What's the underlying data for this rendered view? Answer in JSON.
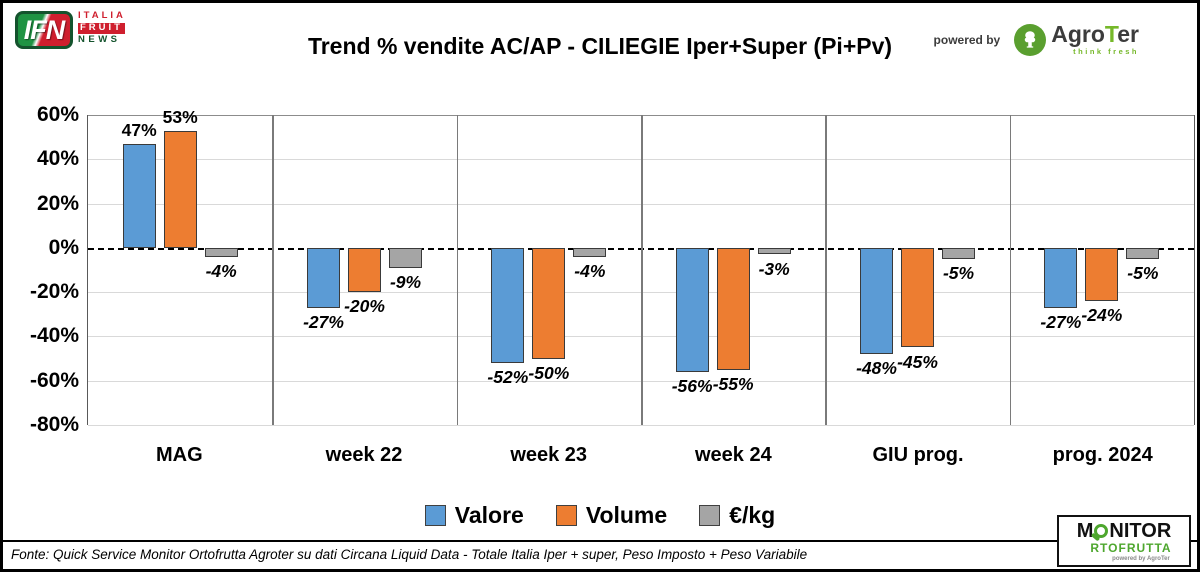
{
  "header": {
    "title": "Trend % vendite AC/AP - CILIEGIE Iper+Super (Pi+Pv)",
    "powered_by": "powered by",
    "ifn": {
      "abbr": "IFN",
      "line1": "ITALIA",
      "line2": "FRUIT",
      "line3": "NEWS"
    },
    "agroter": {
      "prefix": "Agro",
      "accent": "T",
      "suffix": "er",
      "tagline": "think fresh"
    }
  },
  "chart_data": {
    "type": "bar",
    "title": "Trend % vendite AC/AP - CILIEGIE Iper+Super (Pi+Pv)",
    "categories": [
      "MAG",
      "week 22",
      "week 23",
      "week 24",
      "GIU prog.",
      "prog. 2024"
    ],
    "series": [
      {
        "name": "Valore",
        "color": "#5B9BD5",
        "values": [
          47,
          -27,
          -52,
          -56,
          -48,
          -27
        ]
      },
      {
        "name": "Volume",
        "color": "#ED7D31",
        "values": [
          53,
          -20,
          -50,
          -55,
          -45,
          -24
        ]
      },
      {
        "name": "€/kg",
        "color": "#A5A5A5",
        "values": [
          -4,
          -9,
          -4,
          -3,
          -5,
          -5
        ]
      }
    ],
    "ylim": [
      -80,
      60
    ],
    "yticks": [
      60,
      40,
      20,
      0,
      -20,
      -40,
      -60,
      -80
    ],
    "ytick_format": "percent",
    "grid": true,
    "zero_line": "dashed",
    "legend_position": "bottom"
  },
  "footer": {
    "source": "Fonte: Quick Service Monitor Ortofrutta Agroter su dati Circana Liquid Data - Totale Italia Iper + super, Peso Imposto + Peso Variabile",
    "monitor": {
      "m": "M",
      "rest": "NITOR",
      "line2": "RTOFRUTTA",
      "powered": "powered by AgroTer"
    }
  },
  "brand_colors": {
    "ifn_green": "#1f9343",
    "ifn_red": "#cf1f2e",
    "agroter_green": "#76b82a",
    "monitor_green": "#4ea72e"
  }
}
